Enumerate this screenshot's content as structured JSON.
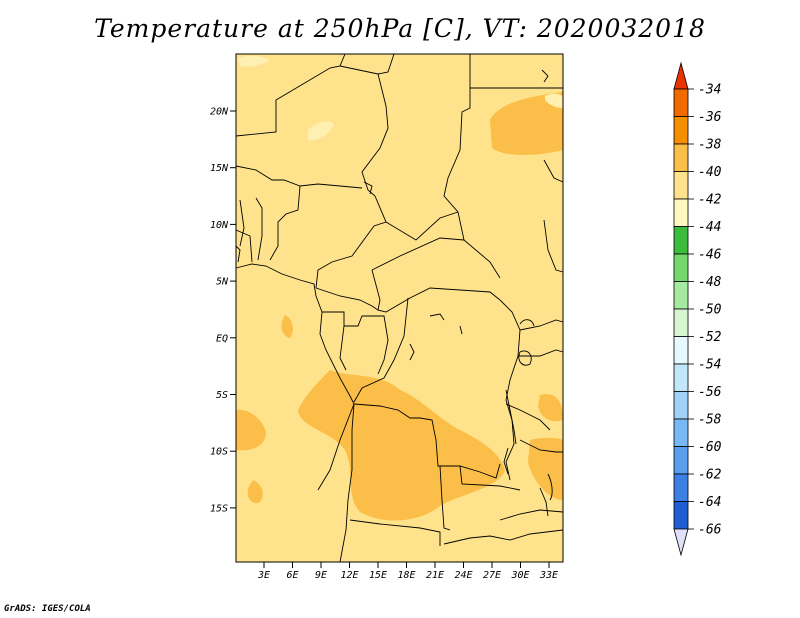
{
  "title": "Temperature at 250hPa [C], VT: 2020032018",
  "credit": "GrADS: IGES/COLA",
  "map": {
    "latitude_labels": [
      "20N",
      "15N",
      "10N",
      "5N",
      "EQ",
      "5S",
      "10S",
      "15S"
    ],
    "longitude_labels": [
      "3E",
      "6E",
      "9E",
      "12E",
      "15E",
      "18E",
      "21E",
      "24E",
      "27E",
      "30E",
      "33E"
    ],
    "background_color": "#fee38c",
    "features": [
      {
        "name": "warm-patch-northeast",
        "color": "#fbbf49"
      },
      {
        "name": "warm-patch-angola-congo",
        "color": "#fbbf49"
      },
      {
        "name": "cool-patch-sahara",
        "color": "#ffefb0"
      }
    ]
  },
  "colorbar": {
    "labels": [
      "-34",
      "-36",
      "-38",
      "-40",
      "-42",
      "-44",
      "-46",
      "-48",
      "-50",
      "-52",
      "-54",
      "-56",
      "-58",
      "-60",
      "-62",
      "-64",
      "-66"
    ],
    "colors": [
      "#f06a00",
      "#f58f00",
      "#fbbf49",
      "#fee38c",
      "#fff7c0",
      "#3cbc3c",
      "#74d86c",
      "#a5eaa0",
      "#d6f5d0",
      "#e8f8ff",
      "#c2e6fa",
      "#a0d2f8",
      "#78b8f4",
      "#5a9ef0",
      "#3c80e6",
      "#1e5ed2",
      "#0a2a8a"
    ],
    "top_arrow_color": "#ea3400",
    "bottom_arrow_color": "#e0e0f8"
  }
}
